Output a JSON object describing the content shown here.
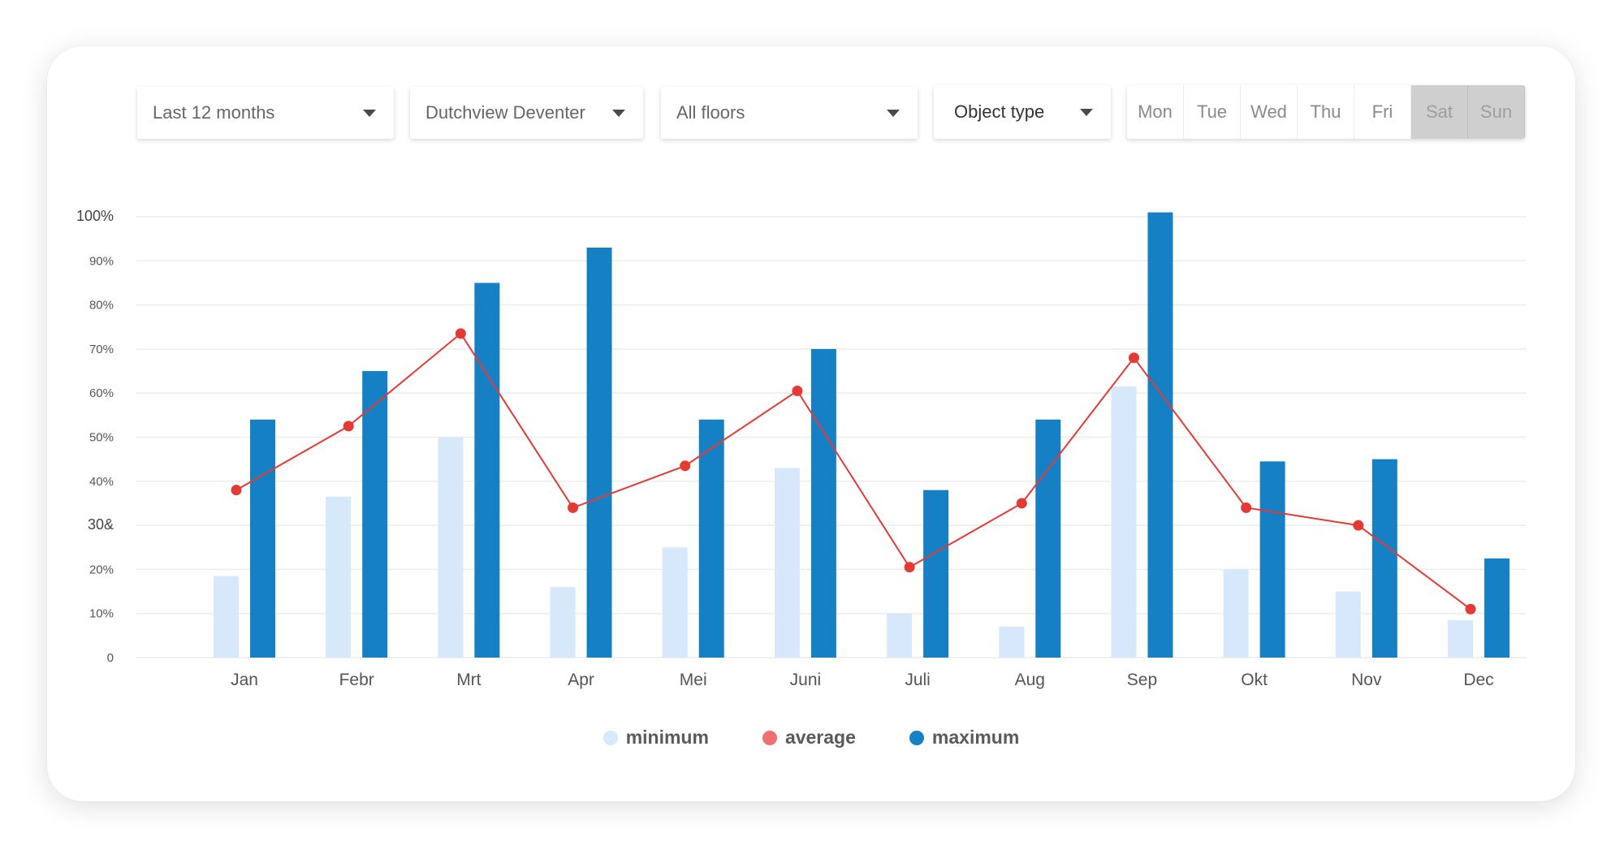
{
  "filters": {
    "period": "Last 12 months",
    "location": "Dutchview Deventer",
    "floors": "All floors",
    "object_type": "Object type"
  },
  "days": [
    {
      "label": "Mon",
      "active": true
    },
    {
      "label": "Tue",
      "active": true
    },
    {
      "label": "Wed",
      "active": true
    },
    {
      "label": "Thu",
      "active": true
    },
    {
      "label": "Fri",
      "active": true
    },
    {
      "label": "Sat",
      "active": false
    },
    {
      "label": "Sun",
      "active": false
    }
  ],
  "colors": {
    "minimum": "#d6e8fa",
    "average": "#e53935",
    "maximum": "#1580c4",
    "grid": "#ececec",
    "legend_average": "#f07070"
  },
  "legend": {
    "minimum": "minimum",
    "average": "average",
    "maximum": "maximum"
  },
  "chart_data": {
    "type": "bar",
    "categories": [
      "Jan",
      "Febr",
      "Mrt",
      "Apr",
      "Mei",
      "Juni",
      "Juli",
      "Aug",
      "Sep",
      "Okt",
      "Nov",
      "Dec"
    ],
    "y_tick_labels": [
      "0",
      "10%",
      "20%",
      "30&",
      "40%",
      "50%",
      "60%",
      "70%",
      "80%",
      "90%",
      "100%"
    ],
    "ylim": [
      0,
      100
    ],
    "grid": true,
    "legend_position": "bottom",
    "series": [
      {
        "name": "minimum",
        "type": "bar",
        "values": [
          18.5,
          36.5,
          50,
          16,
          25,
          43,
          10,
          7,
          61.5,
          20,
          15,
          8.5
        ]
      },
      {
        "name": "maximum",
        "type": "bar",
        "values": [
          54,
          65,
          85,
          93,
          54,
          70,
          38,
          54,
          101,
          44.5,
          45,
          22.5
        ]
      },
      {
        "name": "average",
        "type": "line",
        "values": [
          38,
          52.5,
          73.5,
          34,
          43.5,
          60.5,
          20.5,
          35,
          68,
          34,
          30,
          11
        ]
      }
    ]
  }
}
